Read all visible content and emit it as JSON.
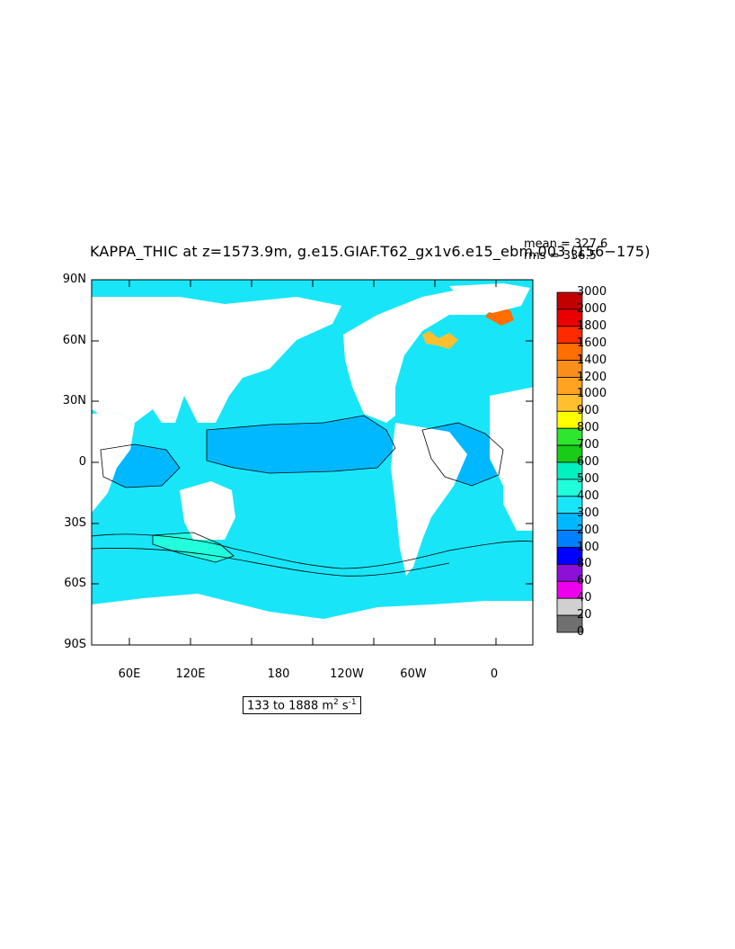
{
  "title": "KAPPA_THIC at z=1573.9m, g.e15.GIAF.T62_gx1v6.e15_ebm.003 (156−175)",
  "stats": {
    "mean": "mean = 327.6",
    "rms": "rms = 336.5"
  },
  "map": {
    "lat_labels": [
      "90N",
      "60N",
      "30N",
      "0",
      "30S",
      "60S",
      "90S"
    ],
    "lon_labels": [
      "60E",
      "120E",
      "180",
      "120W",
      "60W",
      "0"
    ],
    "range_label": {
      "prefix": "133 to 1888 m",
      "sup1": "2",
      "mid": " s",
      "sup2": "-1"
    },
    "ocean_color": "#18e6f8",
    "land_color": "#ffffff"
  },
  "colorbar": {
    "levels": [
      "3000",
      "2000",
      "1800",
      "1600",
      "1400",
      "1200",
      "1000",
      "900",
      "800",
      "700",
      "600",
      "500",
      "400",
      "300",
      "200",
      "100",
      "80",
      "60",
      "40",
      "20",
      "0"
    ],
    "colors": [
      "#c20000",
      "#ea0000",
      "#ff2a00",
      "#ff6e00",
      "#f98f1a",
      "#ffa320",
      "#ffbf2e",
      "#ffff00",
      "#2ee62e",
      "#18cc18",
      "#00f0c0",
      "#22ffdd",
      "#18e6f8",
      "#00b8ff",
      "#0080ff",
      "#0000ff",
      "#8c10d8",
      "#ee00ee",
      "#d0d0d0",
      "#707070"
    ]
  }
}
